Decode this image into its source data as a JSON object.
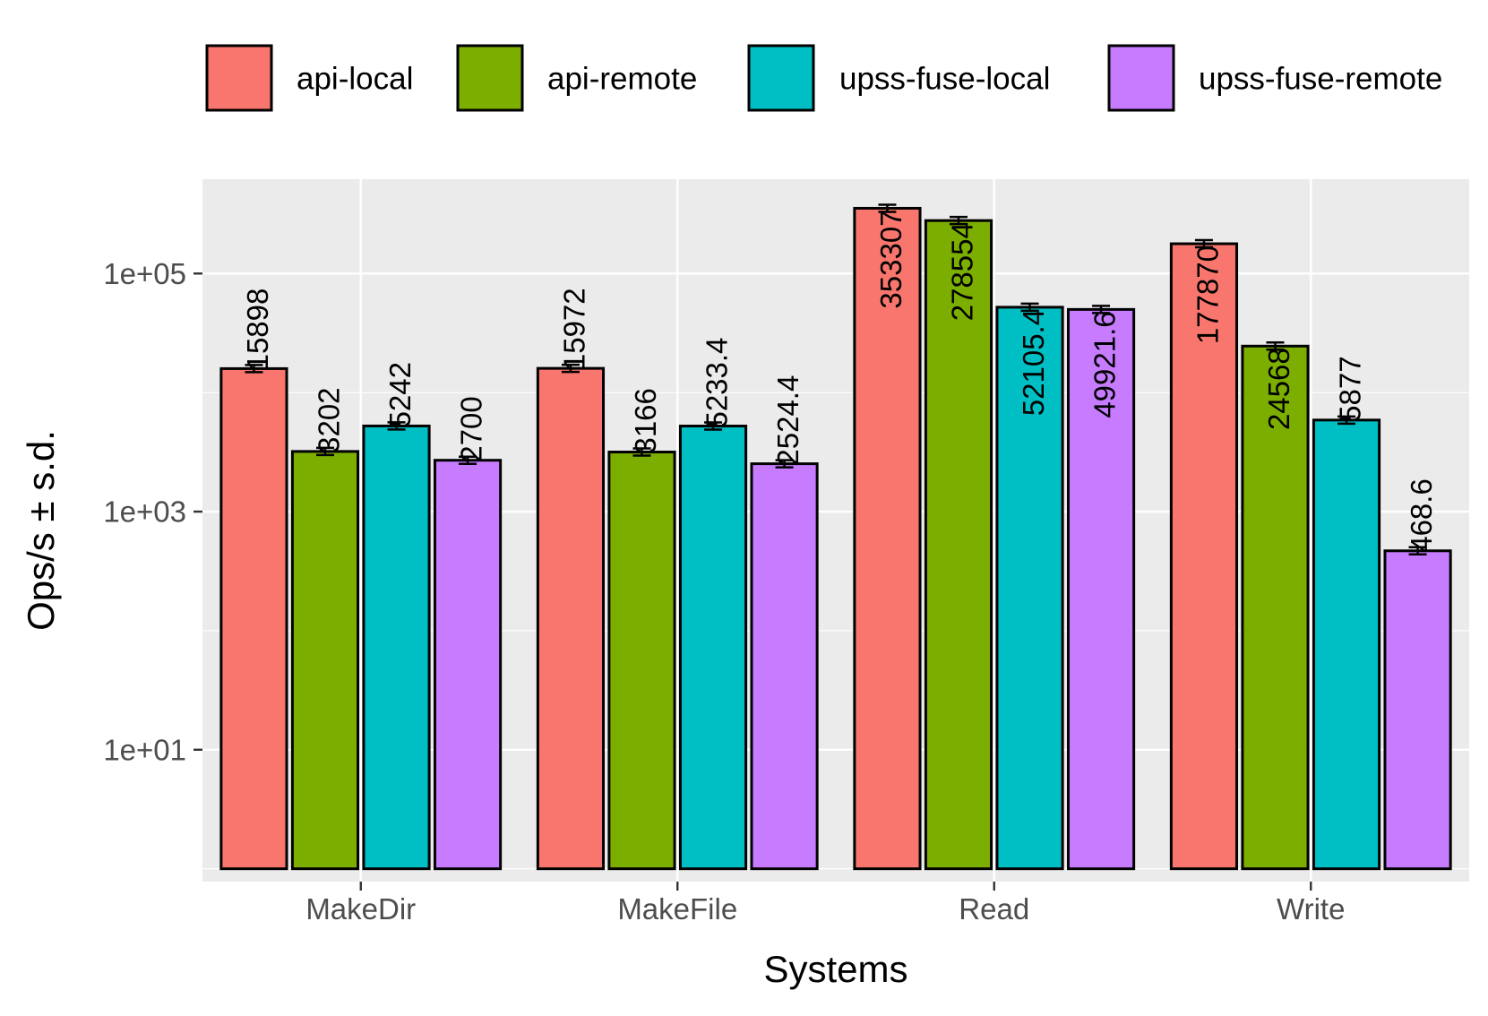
{
  "chart_data": {
    "type": "bar",
    "title": "",
    "xlabel": "Systems",
    "ylabel": "Ops/s ± s.d.",
    "yscale": "log10",
    "ylim": [
      0.78,
      620000
    ],
    "bar_base": 1,
    "yticks": [
      {
        "value": 10,
        "label": "1e+01"
      },
      {
        "value": 1000,
        "label": "1e+03"
      },
      {
        "value": 100000,
        "label": "1e+05"
      }
    ],
    "categories": [
      "MakeDir",
      "MakeFile",
      "Read",
      "Write"
    ],
    "legend_position": "top",
    "grid": true,
    "series": [
      {
        "name": "api-local",
        "color": "#F8766D",
        "values": [
          15898,
          15972,
          353307,
          177870
        ],
        "labels": [
          "15898",
          "15972",
          "353307",
          "177870"
        ]
      },
      {
        "name": "api-remote",
        "color": "#7CAE00",
        "values": [
          3202,
          3166,
          278554,
          24568
        ],
        "labels": [
          "3202",
          "3166",
          "278554",
          "24568"
        ]
      },
      {
        "name": "upss-fuse-local",
        "color": "#00BFC4",
        "values": [
          5242,
          5233.4,
          52105.4,
          5877
        ],
        "labels": [
          "5242",
          "5233.4",
          "52105.4",
          "5877"
        ]
      },
      {
        "name": "upss-fuse-remote",
        "color": "#C77CFF",
        "values": [
          2700,
          2524.4,
          49921.6,
          468.6
        ],
        "labels": [
          "2700",
          "2524.4",
          "49921.6",
          "468.6"
        ]
      }
    ]
  }
}
